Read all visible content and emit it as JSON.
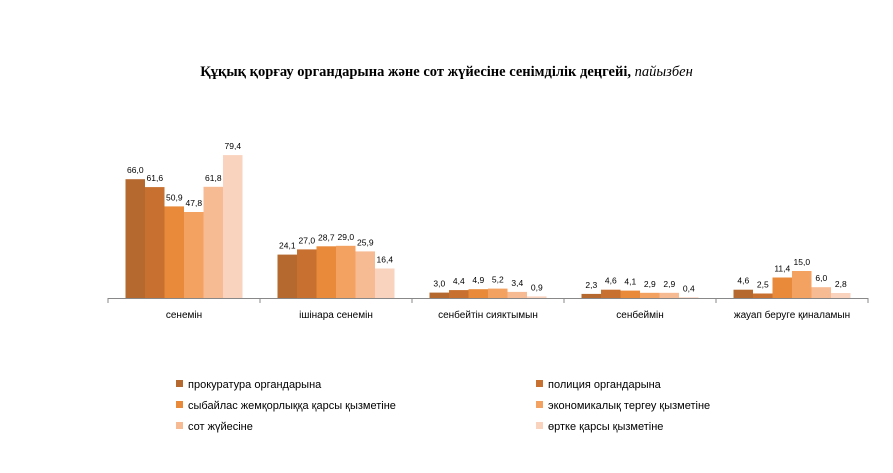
{
  "chart_data": {
    "type": "bar",
    "title": "Құқық қорғау органдарына және сот жүйесіне сенімділік деңгейі,",
    "title_unit": "пайызбен",
    "categories": [
      "сенемін",
      "ішінара сенемін",
      "сенбейтін сияктымын",
      "сенбеймін",
      "жауап беруге қиналамын"
    ],
    "series": [
      {
        "name": "прокуратура органдарына",
        "color": "#b5692f",
        "values": [
          66.0,
          24.1,
          3.0,
          2.3,
          4.6
        ],
        "labels": [
          "66,0",
          "24,1",
          "3,0",
          "2,3",
          "4,6"
        ]
      },
      {
        "name": "полиция органдарына",
        "color": "#c8702f",
        "values": [
          61.6,
          27.0,
          4.4,
          4.6,
          2.5
        ],
        "labels": [
          "61,6",
          "27,0",
          "4,4",
          "4,6",
          "2,5"
        ]
      },
      {
        "name": "сыбайлас жемқорлыққа қарсы қызметіне",
        "color": "#e88a3a",
        "values": [
          50.9,
          28.7,
          4.9,
          4.1,
          11.4
        ],
        "labels": [
          "50,9",
          "28,7",
          "4,9",
          "4,1",
          "11,4"
        ]
      },
      {
        "name": "экономикалық тергеу қызметіне",
        "color": "#f4a261",
        "values": [
          47.8,
          29.0,
          5.2,
          2.9,
          15.0
        ],
        "labels": [
          "47,8",
          "29,0",
          "5,2",
          "2,9",
          "15,0"
        ]
      },
      {
        "name": "сот жүйесіне",
        "color": "#f7bb93",
        "values": [
          61.8,
          25.9,
          3.4,
          2.9,
          6.0
        ],
        "labels": [
          "61,8",
          "25,9",
          "3,4",
          "2,9",
          "6,0"
        ]
      },
      {
        "name": "өртке қарсы қызметіне",
        "color": "#f9d3bd",
        "values": [
          79.4,
          16.4,
          0.9,
          0.4,
          2.8
        ],
        "labels": [
          "79,4",
          "16,4",
          "0,9",
          "0,4",
          "2,8"
        ]
      }
    ],
    "ylim": [
      0,
      85
    ],
    "grid": false,
    "legend_position": "bottom"
  }
}
